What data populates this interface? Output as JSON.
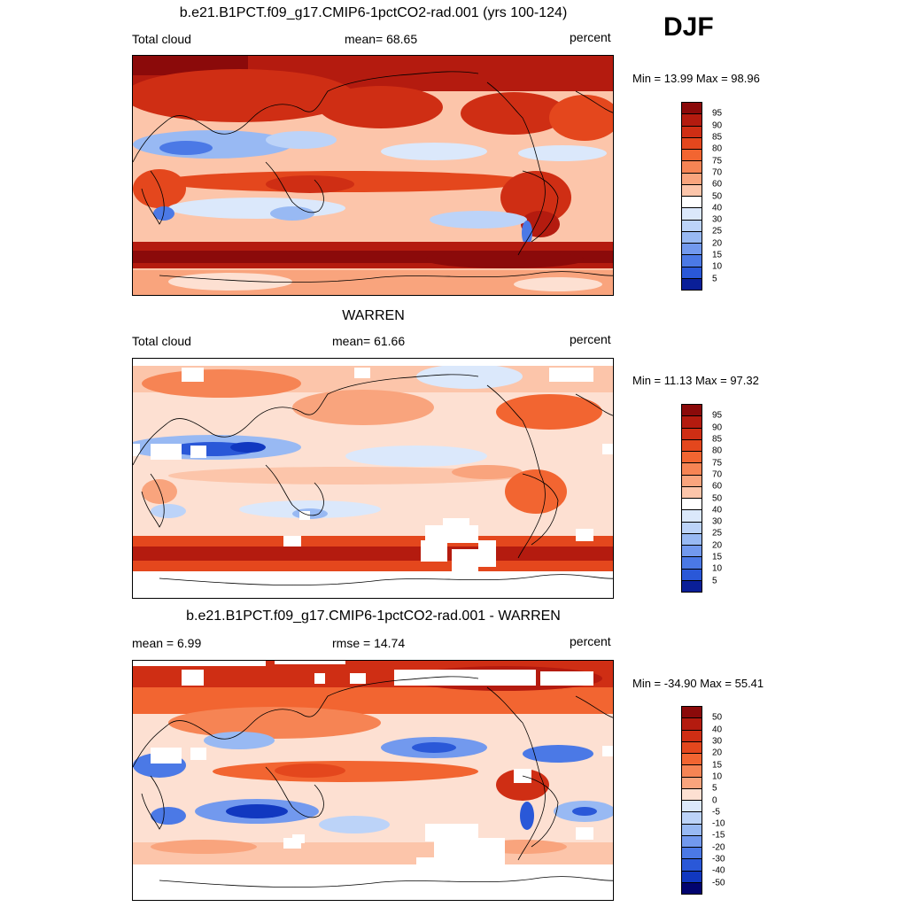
{
  "season": "DJF",
  "colors": {
    "pos": [
      "#ffffff",
      "#fde0d2",
      "#fcc5aa",
      "#f9a47d",
      "#f68454",
      "#f26531",
      "#e4471d",
      "#cf2e14",
      "#b41b0f",
      "#8b0a0a"
    ],
    "neg": [
      "#ffffff",
      "#dbe8fb",
      "#bcd3f8",
      "#98b9f3",
      "#7299ee",
      "#4b79e6",
      "#2a58d8",
      "#1138c0",
      "#0a1f98",
      "#02046f"
    ],
    "map_missing": "#ffffff",
    "coastline": "#000000"
  },
  "panels": [
    {
      "title": "b.e21.B1PCT.f09_g17.CMIP6-1pctCO2-rad.001 (yrs 100-124)",
      "left": "Total cloud",
      "center": "mean=  68.65",
      "right": "percent",
      "minmax": "Min =  13.99 Max =  98.96",
      "colorbar_labels": [
        "95",
        "90",
        "85",
        "80",
        "75",
        "70",
        "60",
        "50",
        "40",
        "30",
        "25",
        "20",
        "15",
        "10",
        "5"
      ]
    },
    {
      "title": "WARREN",
      "left": "Total cloud",
      "center": "mean=  61.66",
      "right": "percent",
      "minmax": "Min =  11.13 Max =  97.32",
      "colorbar_labels": [
        "95",
        "90",
        "85",
        "80",
        "75",
        "70",
        "60",
        "50",
        "40",
        "30",
        "25",
        "20",
        "15",
        "10",
        "5"
      ]
    },
    {
      "title": "b.e21.B1PCT.f09_g17.CMIP6-1pctCO2-rad.001 - WARREN",
      "left": "mean =   6.99",
      "center": "rmse =  14.74",
      "right": "percent",
      "minmax": "Min = -34.90 Max =  55.41",
      "colorbar_labels": [
        "50",
        "40",
        "30",
        "20",
        "15",
        "10",
        "5",
        "0",
        "-5",
        "-10",
        "-15",
        "-20",
        "-30",
        "-40",
        "-50"
      ]
    }
  ]
}
